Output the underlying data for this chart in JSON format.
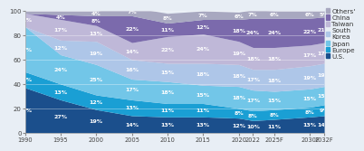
{
  "years": [
    1990,
    1995,
    2000,
    2005,
    2010,
    2015,
    2020,
    2022,
    2025,
    2030,
    2032
  ],
  "xlabel_labels": [
    "1990",
    "1995",
    "2000",
    "2005",
    "2010",
    "2015",
    "2020",
    "2022",
    "2025F",
    "2030F",
    "2032F"
  ],
  "order": [
    "U.S.",
    "Europe",
    "Japan",
    "South Korea",
    "Taiwan",
    "China",
    "Others"
  ],
  "color_map": {
    "U.S.": "#1b4f8c",
    "Europe": "#1a9fd4",
    "Japan": "#72c6e8",
    "South Korea": "#aec6e8",
    "Taiwan": "#bfb8d8",
    "China": "#7b6aac",
    "Others": "#a8a8c0"
  },
  "label_data": {
    "U.S.": [
      37,
      27,
      19,
      14,
      13,
      13,
      12,
      10,
      11,
      13,
      14
    ],
    "Europe": [
      13,
      13,
      12,
      13,
      11,
      11,
      8,
      8,
      8,
      8,
      9
    ],
    "Japan": [
      37,
      24,
      25,
      17,
      18,
      15,
      18,
      17,
      15,
      15,
      15
    ],
    "South Korea": [
      0,
      12,
      19,
      16,
      15,
      18,
      18,
      17,
      18,
      19,
      19
    ],
    "Taiwan": [
      11,
      17,
      13,
      14,
      22,
      24,
      19,
      18,
      18,
      17,
      17
    ],
    "China": [
      0,
      4,
      8,
      22,
      11,
      12,
      18,
      24,
      24,
      22,
      21
    ],
    "Others": [
      2,
      3,
      4,
      7,
      8,
      7,
      6,
      7,
      6,
      6,
      5
    ]
  },
  "yticks": [
    0,
    20,
    40,
    60,
    80,
    100
  ],
  "bg_color": "#e8eef5",
  "label_fontsize": 4.5,
  "legend_fontsize": 5.2,
  "legend_labels": [
    "Others'",
    "China",
    "Taiwan",
    "South\nKorea",
    "Japan",
    "Europe",
    "U.S."
  ],
  "legend_keys": [
    "Others",
    "China",
    "Taiwan",
    "South Korea",
    "Japan",
    "Europe",
    "U.S."
  ]
}
